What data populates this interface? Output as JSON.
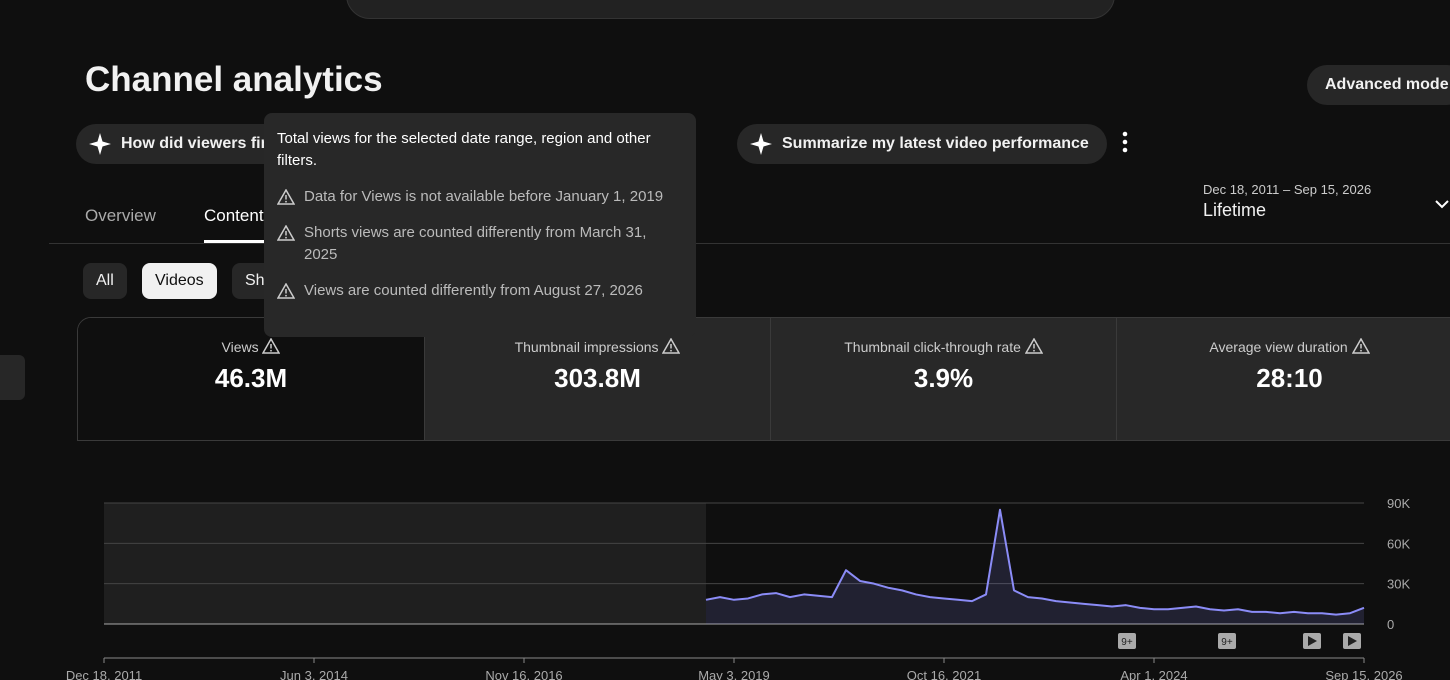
{
  "header": {
    "title": "Channel analytics",
    "advanced_mode": "Advanced mode"
  },
  "chips": [
    "How did viewers find my videos?",
    "Summarize my latest video performance"
  ],
  "tabs": [
    "Overview",
    "Content"
  ],
  "date_range": {
    "range": "Dec 18, 2011 – Sep 15, 2026",
    "label": "Lifetime"
  },
  "filters": [
    "All",
    "Videos",
    "Shorts"
  ],
  "metrics": [
    {
      "label": "Views",
      "value": "46.3M"
    },
    {
      "label": "Thumbnail impressions",
      "value": "303.8M"
    },
    {
      "label": "Thumbnail click-through rate",
      "value": "3.9%"
    },
    {
      "label": "Average view duration",
      "value": "28:10"
    }
  ],
  "tooltip": {
    "text": "Total views for the selected date range, region and other filters.",
    "warnings": [
      "Data for Views is not available before January 1, 2019",
      "Shorts views are counted differently from March 31, 2025",
      "Views are counted differently from August 27, 2026"
    ]
  },
  "chart_data": {
    "type": "line",
    "color": "#8b8cf7",
    "ylim": [
      0,
      90000
    ],
    "yticks": [
      {
        "value": 0,
        "label": "0"
      },
      {
        "value": 30000,
        "label": "30K"
      },
      {
        "value": 60000,
        "label": "60K"
      },
      {
        "value": 90000,
        "label": "90K"
      }
    ],
    "xticks": [
      "Dec 18, 2011",
      "Jun 3, 2014",
      "Nov 16, 2016",
      "May 3, 2019",
      "Oct 16, 2021",
      "Apr 1, 2024",
      "Sep 15, 2026"
    ],
    "grid": true,
    "markers": [
      "9+",
      "9+"
    ],
    "values": [
      null,
      null,
      null,
      null,
      null,
      null,
      null,
      null,
      null,
      null,
      null,
      null,
      null,
      null,
      null,
      null,
      null,
      null,
      null,
      null,
      null,
      null,
      null,
      null,
      null,
      null,
      null,
      null,
      null,
      null,
      null,
      null,
      null,
      null,
      null,
      null,
      null,
      null,
      null,
      null,
      null,
      null,
      null,
      18000,
      20000,
      18000,
      19000,
      22000,
      23000,
      20000,
      22000,
      21000,
      20000,
      40000,
      32000,
      30000,
      27000,
      25000,
      22000,
      20000,
      19000,
      18000,
      17000,
      22000,
      85000,
      25000,
      20000,
      19000,
      17000,
      16000,
      15000,
      14000,
      13000,
      14000,
      12000,
      11000,
      11000,
      12000,
      13000,
      11000,
      10000,
      11000,
      9000,
      9000,
      8000,
      9000,
      8000,
      8000,
      7000,
      8000,
      12000
    ]
  }
}
